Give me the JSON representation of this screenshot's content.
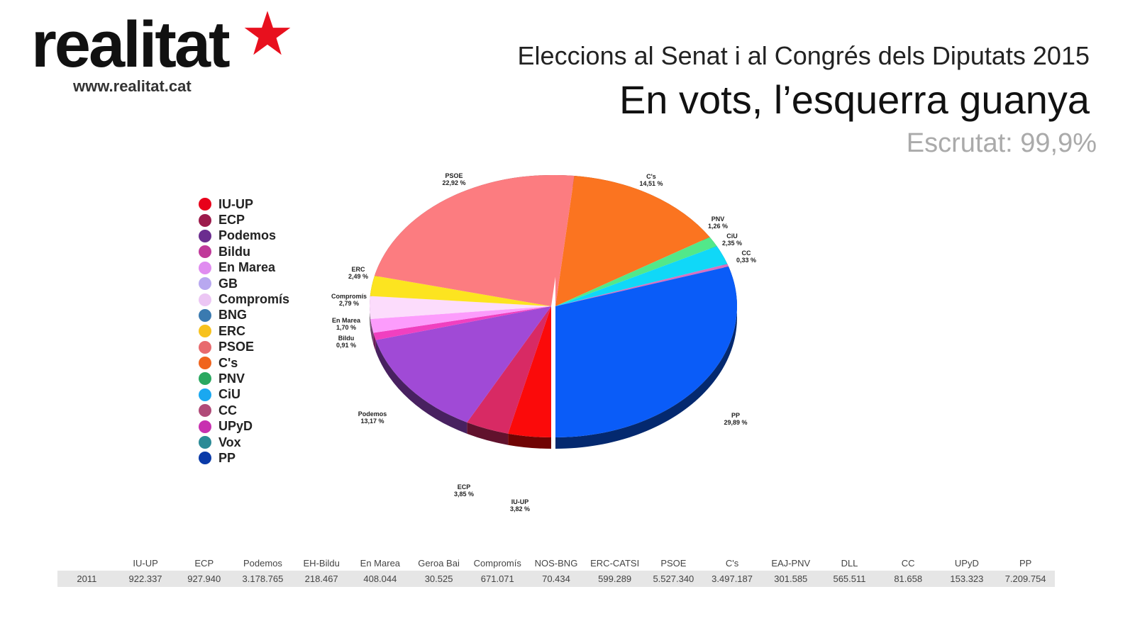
{
  "logo": {
    "text": "realitat",
    "url": "www.realitat.cat"
  },
  "title": "Eleccions al Senat i al Congrés dels Diputats 2015",
  "subtitle": "En vots, l’esquerra guanya",
  "scrutiny": "Escrutat: 99,9%",
  "legend": [
    {
      "name": "IU-UP",
      "color": "#e8001a"
    },
    {
      "name": "ECP",
      "color": "#9c1a4b"
    },
    {
      "name": "Podemos",
      "color": "#6b2d8f"
    },
    {
      "name": "Bildu",
      "color": "#c0399a"
    },
    {
      "name": "En Marea",
      "color": "#e08cf0"
    },
    {
      "name": "GB",
      "color": "#b8a8f0"
    },
    {
      "name": "Compromís",
      "color": "#ecc6f4"
    },
    {
      "name": "BNG",
      "color": "#3a7ab0"
    },
    {
      "name": "ERC",
      "color": "#f7c21e"
    },
    {
      "name": "PSOE",
      "color": "#e86a6e"
    },
    {
      "name": "C's",
      "color": "#f0641e"
    },
    {
      "name": "PNV",
      "color": "#2aa860"
    },
    {
      "name": "CiU",
      "color": "#1aa8f0"
    },
    {
      "name": "CC",
      "color": "#b04a78"
    },
    {
      "name": "UPyD",
      "color": "#c830b0"
    },
    {
      "name": "Vox",
      "color": "#2a8a96"
    },
    {
      "name": "PP",
      "color": "#0a3aa8"
    }
  ],
  "chart_data": {
    "type": "pie",
    "title": "En vots, l’esquerra guanya",
    "slices": [
      {
        "name": "C's",
        "value": 14.51,
        "label": "14,51 %",
        "color": "#fb7420"
      },
      {
        "name": "PNV",
        "value": 1.26,
        "label": "1,26 %",
        "color": "#52e88a"
      },
      {
        "name": "CiU",
        "value": 2.35,
        "label": "2,35 %",
        "color": "#10d8f8"
      },
      {
        "name": "CC",
        "value": 0.33,
        "label": "0,33 %",
        "color": "#d870c0"
      },
      {
        "name": "PP",
        "value": 29.89,
        "label": "29,89 %",
        "color": "#0a5cf8"
      },
      {
        "name": "IU-UP",
        "value": 3.82,
        "label": "3,82 %",
        "color": "#fb0a0a"
      },
      {
        "name": "ECP",
        "value": 3.85,
        "label": "3,85 %",
        "color": "#d82a64"
      },
      {
        "name": "Podemos",
        "value": 13.17,
        "label": "13,17 %",
        "color": "#a04ad6"
      },
      {
        "name": "Bildu",
        "value": 0.91,
        "label": "0,91 %",
        "color": "#f040c0"
      },
      {
        "name": "En Marea",
        "value": 1.7,
        "label": "1,70 %",
        "color": "#fc9cfc"
      },
      {
        "name": "Compromís",
        "value": 2.79,
        "label": "2,79 %",
        "color": "#fcdcfc"
      },
      {
        "name": "ERC",
        "value": 2.49,
        "label": "2,49 %",
        "color": "#fce420"
      },
      {
        "name": "PSOE",
        "value": 22.92,
        "label": "22,92 %",
        "color": "#fc7c80"
      }
    ]
  },
  "table": {
    "headers": [
      "",
      "IU-UP",
      "ECP",
      "Podemos",
      "EH-Bildu",
      "En Marea",
      "Geroa Bai",
      "Compromís",
      "NOS-BNG",
      "ERC-CATSI",
      "PSOE",
      "C's",
      "EAJ-PNV",
      "DLL",
      "CC",
      "UPyD",
      "PP"
    ],
    "rows": [
      [
        "2011",
        "922.337",
        "927.940",
        "3.178.765",
        "218.467",
        "408.044",
        "30.525",
        "671.071",
        "70.434",
        "599.289",
        "5.527.340",
        "3.497.187",
        "301.585",
        "565.511",
        "81.658",
        "153.323",
        "7.209.754"
      ]
    ]
  }
}
